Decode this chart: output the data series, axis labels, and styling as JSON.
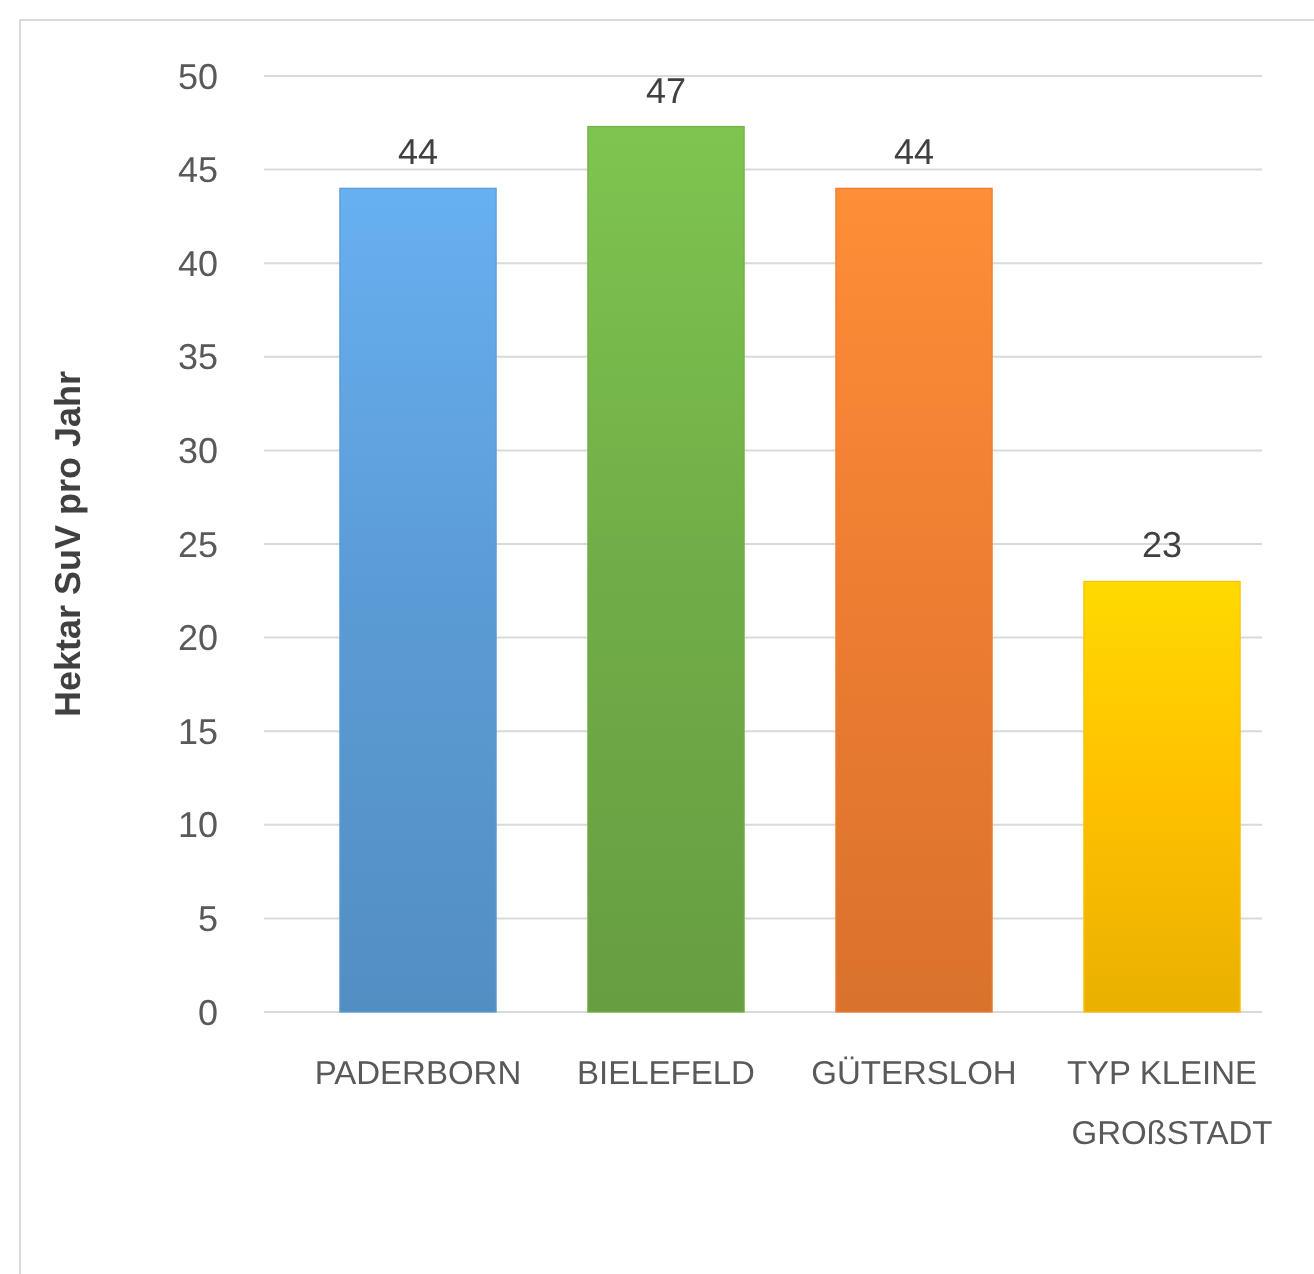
{
  "chart_data": {
    "type": "bar",
    "ylabel": "Hektar SuV pro Jahr",
    "categories": [
      "PADERBORN",
      "BIELEFELD",
      "GÜTERSLOH",
      "TYP KLEINE GROßSTADT"
    ],
    "values": [
      44,
      47.3,
      44,
      23
    ],
    "value_labels": [
      "44",
      "47",
      "44",
      "23"
    ],
    "colors": [
      "#5b9bd5",
      "#70ad47",
      "#ed7d31",
      "#ffc000"
    ],
    "ylim": [
      0,
      50
    ],
    "yticks": [
      0,
      5,
      10,
      15,
      20,
      25,
      30,
      35,
      40,
      45,
      50
    ],
    "grid": "y"
  }
}
